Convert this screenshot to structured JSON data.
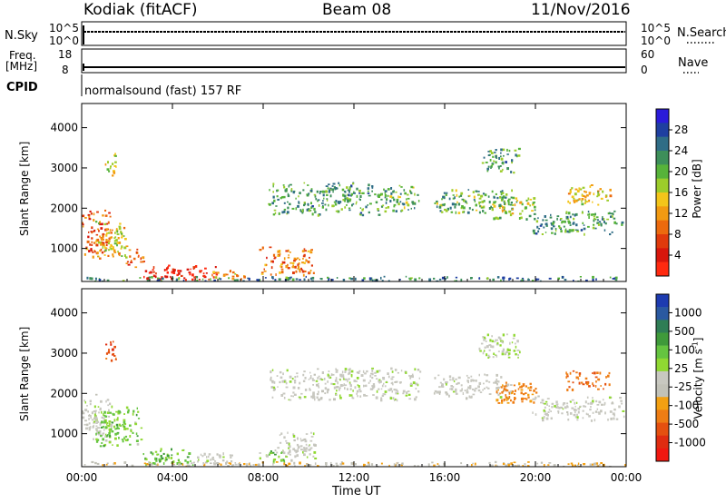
{
  "header": {
    "station": "Kodiak (fitACF)",
    "beam": "Beam 08",
    "date": "11/Nov/2016"
  },
  "top_panels": {
    "nsky_label": "N.Sky",
    "nsky_ticks": [
      "10^5",
      "10^0"
    ],
    "nsearch_label": "N.Search",
    "nsearch_ticks": [
      "10^5",
      "10^0"
    ],
    "freq_label_line1": "Freq.",
    "freq_label_line2": "[MHz]",
    "freq_ticks": [
      "18",
      "8"
    ],
    "nave_label": "Nave",
    "nave_ticks": [
      "60",
      "0"
    ],
    "cpid_label": "CPID",
    "cpid_text": "normalsound (fast) 157 RF"
  },
  "panels": {
    "ylabel": "Slant Range [km]",
    "xlabel": "Time UT"
  },
  "chart_data": [
    {
      "type": "heatmap",
      "name": "Power",
      "colorbar_label": "Power [dB]",
      "colorbar_ticks": [
        "28",
        "24",
        "20",
        "16",
        "12",
        "8",
        "4"
      ],
      "colorbar_colors": [
        "#2b1bd9",
        "#1f3fa0",
        "#2f6d86",
        "#3d8f5a",
        "#57b33a",
        "#9ccc2b",
        "#f3c51a",
        "#f29a12",
        "#ec6a0e",
        "#e03a0c",
        "#d8160c",
        "#ff2a10"
      ],
      "ylabel": "Slant Range [km]",
      "yticks": [
        "4000",
        "3000",
        "2000",
        "1000"
      ],
      "ylim": [
        180,
        4600
      ],
      "xticks": [
        "00:00",
        "04:00",
        "08:00",
        "12:00",
        "16:00",
        "20:00",
        "00:00"
      ],
      "xlim_hours": [
        0,
        24
      ],
      "regions": [
        {
          "t0": 0.0,
          "t1": 1.3,
          "r0": 800,
          "r1": 2000,
          "level": 0.75
        },
        {
          "t0": 0.6,
          "t1": 2.0,
          "r0": 700,
          "r1": 1700,
          "level": 0.55
        },
        {
          "t0": 1.9,
          "t1": 2.8,
          "r0": 550,
          "r1": 1000,
          "level": 0.8
        },
        {
          "t0": 2.7,
          "t1": 6.0,
          "r0": 230,
          "r1": 600,
          "level": 0.95
        },
        {
          "t0": 5.7,
          "t1": 7.3,
          "r0": 260,
          "r1": 480,
          "level": 0.6
        },
        {
          "t0": 7.8,
          "t1": 10.3,
          "r0": 350,
          "r1": 1050,
          "level": 0.7
        },
        {
          "t0": 8.2,
          "t1": 13.3,
          "r0": 1850,
          "r1": 2650,
          "level": 0.3
        },
        {
          "t0": 13.0,
          "t1": 14.9,
          "r0": 1900,
          "r1": 2600,
          "level": 0.35
        },
        {
          "t0": 15.5,
          "t1": 19.0,
          "r0": 1900,
          "r1": 2500,
          "level": 0.35
        },
        {
          "t0": 18.0,
          "t1": 20.0,
          "r0": 1750,
          "r1": 2300,
          "level": 0.45
        },
        {
          "t0": 19.8,
          "t1": 23.9,
          "r0": 1350,
          "r1": 1950,
          "level": 0.3
        },
        {
          "t0": 21.3,
          "t1": 23.3,
          "r0": 2100,
          "r1": 2600,
          "level": 0.55
        },
        {
          "t0": 17.5,
          "t1": 19.3,
          "r0": 2900,
          "r1": 3500,
          "level": 0.3
        },
        {
          "t0": 1.0,
          "t1": 1.5,
          "r0": 2800,
          "r1": 3400,
          "level": 0.5
        },
        {
          "t0": 0.0,
          "t1": 24.0,
          "r0": 200,
          "r1": 320,
          "level": 0.25
        }
      ]
    },
    {
      "type": "heatmap",
      "name": "Velocity",
      "colorbar_label": "Velocity [m s^-1]",
      "colorbar_ticks": [
        "1000",
        "500",
        "100",
        "25",
        "-25",
        "-100",
        "-500",
        "-1000"
      ],
      "colorbar_colors": [
        "#1d3bb0",
        "#2a59a0",
        "#2f7d55",
        "#3f9a3a",
        "#65c440",
        "#90d832",
        "#c8c8c0",
        "#c2c2b8",
        "#f3a012",
        "#ee7d14",
        "#e5500f",
        "#e02c10",
        "#f01810"
      ],
      "ylabel": "Slant Range [km]",
      "yticks": [
        "4000",
        "3000",
        "2000",
        "1000"
      ],
      "ylim": [
        180,
        4600
      ],
      "xticks": [
        "00:00",
        "04:00",
        "08:00",
        "12:00",
        "16:00",
        "20:00",
        "00:00"
      ],
      "xlim_hours": [
        0,
        24
      ],
      "regions": [
        {
          "t0": 0.0,
          "t1": 1.3,
          "r0": 800,
          "r1": 2000,
          "velocity": 0
        },
        {
          "t0": 0.6,
          "t1": 2.6,
          "r0": 700,
          "r1": 1700,
          "velocity": 60
        },
        {
          "t0": 2.7,
          "t1": 5.0,
          "r0": 230,
          "r1": 650,
          "velocity": 80
        },
        {
          "t0": 5.0,
          "t1": 6.8,
          "r0": 230,
          "r1": 550,
          "velocity": 0
        },
        {
          "t0": 7.8,
          "t1": 9.0,
          "r0": 300,
          "r1": 600,
          "velocity": 60
        },
        {
          "t0": 8.5,
          "t1": 10.3,
          "r0": 350,
          "r1": 1050,
          "velocity": 0
        },
        {
          "t0": 8.2,
          "t1": 14.9,
          "r0": 1850,
          "r1": 2650,
          "velocity": 0
        },
        {
          "t0": 15.5,
          "t1": 19.0,
          "r0": 1900,
          "r1": 2500,
          "velocity": 0
        },
        {
          "t0": 18.0,
          "t1": 20.0,
          "r0": 1750,
          "r1": 2300,
          "velocity": -150
        },
        {
          "t0": 19.8,
          "t1": 23.9,
          "r0": 1350,
          "r1": 1950,
          "velocity": 0
        },
        {
          "t0": 21.3,
          "t1": 23.3,
          "r0": 2100,
          "r1": 2600,
          "velocity": -300
        },
        {
          "t0": 17.5,
          "t1": 19.3,
          "r0": 2900,
          "r1": 3500,
          "velocity": 15
        },
        {
          "t0": 1.0,
          "t1": 1.5,
          "r0": 2800,
          "r1": 3400,
          "velocity": -400
        },
        {
          "t0": 0.0,
          "t1": 24.0,
          "r0": 200,
          "r1": 320,
          "velocity": -50
        }
      ]
    }
  ]
}
